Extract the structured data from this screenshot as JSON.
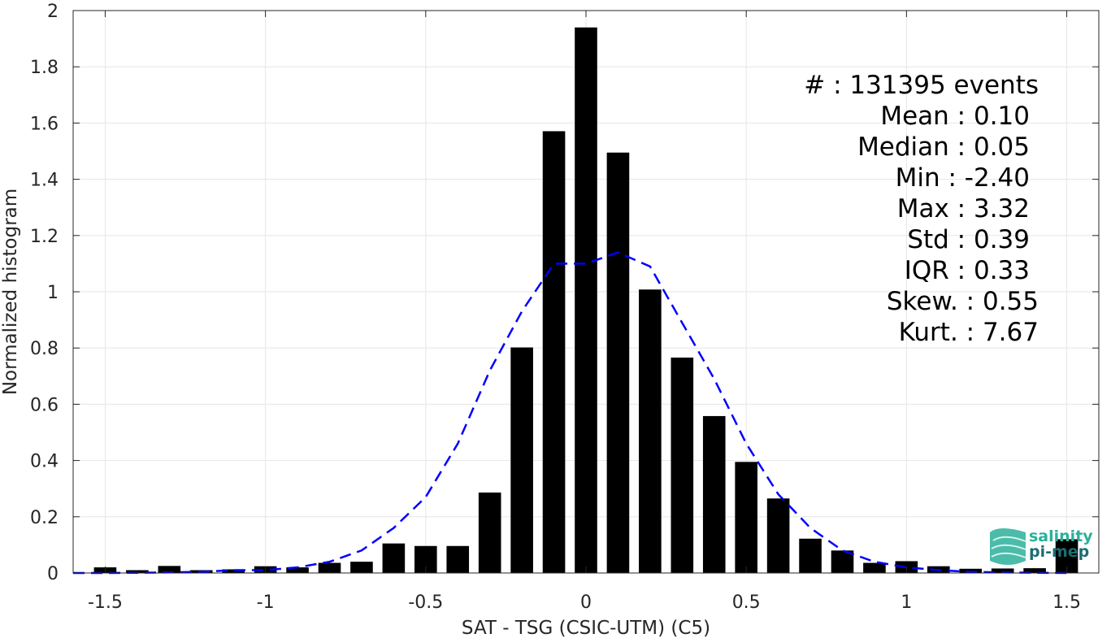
{
  "chart_data": {
    "type": "bar",
    "xlabel": "SAT - TSG (CSIC-UTM) (C5)",
    "ylabel": "Normalized histogram",
    "xlim": [
      -1.6,
      1.6
    ],
    "ylim": [
      0,
      2
    ],
    "grid": true,
    "x_ticks": [
      -1.5,
      -1,
      -0.5,
      0,
      0.5,
      1,
      1.5
    ],
    "x_tick_labels": [
      "-1.5",
      "-1",
      "-0.5",
      "0",
      "0.5",
      "1",
      "1.5"
    ],
    "y_ticks": [
      0,
      0.2,
      0.4,
      0.6,
      0.8,
      1,
      1.2,
      1.4,
      1.6,
      1.8,
      2
    ],
    "y_tick_labels": [
      "0",
      "0.2",
      "0.4",
      "0.6",
      "0.8",
      "1",
      "1.2",
      "1.4",
      "1.6",
      "1.8",
      "2"
    ],
    "bar_color": "#000000",
    "bar_width": 0.07,
    "x": [
      -1.5,
      -1.4,
      -1.3,
      -1.2,
      -1.1,
      -1.0,
      -0.9,
      -0.8,
      -0.7,
      -0.6,
      -0.5,
      -0.4,
      -0.3,
      -0.2,
      -0.1,
      0.0,
      0.1,
      0.2,
      0.3,
      0.4,
      0.5,
      0.6,
      0.7,
      0.8,
      0.9,
      1.0,
      1.1,
      1.2,
      1.3,
      1.4,
      1.5
    ],
    "values": [
      0.02,
      0.01,
      0.025,
      0.01,
      0.013,
      0.024,
      0.02,
      0.036,
      0.04,
      0.105,
      0.096,
      0.096,
      0.286,
      0.802,
      1.571,
      1.94,
      1.495,
      1.008,
      0.766,
      0.558,
      0.395,
      0.265,
      0.122,
      0.08,
      0.036,
      0.042,
      0.024,
      0.015,
      0.016,
      0.017,
      0.12
    ],
    "fit_curve": {
      "type": "normal",
      "color": "#0000ff",
      "style": "dashed",
      "x": [
        -1.6,
        -1.5,
        -1.4,
        -1.3,
        -1.2,
        -1.1,
        -1.0,
        -0.9,
        -0.8,
        -0.7,
        -0.6,
        -0.5,
        -0.4,
        -0.3,
        -0.2,
        -0.1,
        0.0,
        0.1,
        0.2,
        0.3,
        0.4,
        0.5,
        0.6,
        0.7,
        0.8,
        0.9,
        1.0,
        1.1,
        1.2,
        1.3,
        1.4,
        1.5
      ],
      "y": [
        0.0,
        0.0,
        0.001,
        0.002,
        0.004,
        0.01,
        0.01,
        0.02,
        0.04,
        0.08,
        0.16,
        0.27,
        0.46,
        0.72,
        0.93,
        1.1,
        1.1,
        1.14,
        1.09,
        0.89,
        0.69,
        0.46,
        0.28,
        0.16,
        0.08,
        0.04,
        0.02,
        0.01,
        0.004,
        0.002,
        0.001,
        0.0
      ]
    }
  },
  "stats": {
    "lines": [
      "#  : 131395 events",
      "Mean : 0.10",
      "Median : 0.05",
      "Min : -2.40",
      "Max : 3.32",
      "Std : 0.39",
      "IQR : 0.33",
      "Skew. : 0.55",
      "Kurt. : 7.67"
    ]
  },
  "logo": {
    "line1": "salinity",
    "line2": "pi-mep",
    "color_primary": "#2ab09a",
    "color_secondary": "#1a6e73"
  }
}
